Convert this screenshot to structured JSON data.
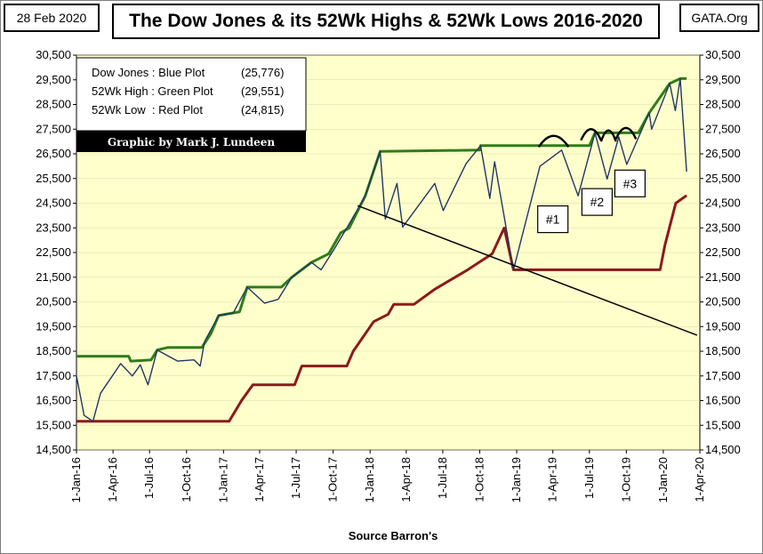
{
  "header": {
    "date": "28 Feb 2020",
    "source": "GATA.Org"
  },
  "chart_data": {
    "type": "line",
    "title": "The Dow Jones & its 52Wk Highs & 52Wk Lows 2016-2020",
    "xlabel": "Source Barron's",
    "ylabel": "",
    "ylim": [
      14500,
      30500
    ],
    "x_range": [
      "2016-01-01",
      "2020-04-01"
    ],
    "y_ticks": [
      "14,500",
      "15,500",
      "16,500",
      "17,500",
      "18,500",
      "19,500",
      "20,500",
      "21,500",
      "22,500",
      "23,500",
      "24,500",
      "25,500",
      "26,500",
      "27,500",
      "28,500",
      "29,500",
      "30,500"
    ],
    "x_ticks": [
      "1-Jan-16",
      "1-Apr-16",
      "1-Jul-16",
      "1-Oct-16",
      "1-Jan-17",
      "1-Apr-17",
      "1-Jul-17",
      "1-Oct-17",
      "1-Jan-18",
      "1-Apr-18",
      "1-Jul-18",
      "1-Oct-18",
      "1-Jan-19",
      "1-Apr-19",
      "1-Jul-19",
      "1-Oct-19",
      "1-Jan-20",
      "1-Apr-20"
    ],
    "legend": {
      "lines": [
        {
          "label": "Dow Jones : Blue Plot",
          "value": "(25,776)"
        },
        {
          "label": "52Wk High : Green Plot",
          "value": "(29,551)"
        },
        {
          "label": "52Wk Low  : Red Plot",
          "value": "(24,815)"
        }
      ],
      "credit": "Graphic by Mark J. Lundeen"
    },
    "series": [
      {
        "name": "Dow Jones",
        "color": "#1f3864",
        "points": [
          [
            "2016-01-01",
            17500
          ],
          [
            "2016-01-20",
            15900
          ],
          [
            "2016-02-11",
            15660
          ],
          [
            "2016-03-01",
            16800
          ],
          [
            "2016-04-20",
            18000
          ],
          [
            "2016-05-19",
            17500
          ],
          [
            "2016-06-08",
            17950
          ],
          [
            "2016-06-27",
            17140
          ],
          [
            "2016-07-20",
            18550
          ],
          [
            "2016-09-09",
            18100
          ],
          [
            "2016-10-20",
            18150
          ],
          [
            "2016-11-04",
            17900
          ],
          [
            "2016-11-15",
            18900
          ],
          [
            "2016-12-20",
            19950
          ],
          [
            "2017-01-25",
            20050
          ],
          [
            "2017-03-01",
            21100
          ],
          [
            "2017-04-13",
            20450
          ],
          [
            "2017-05-17",
            20600
          ],
          [
            "2017-06-20",
            21500
          ],
          [
            "2017-08-08",
            22100
          ],
          [
            "2017-09-01",
            21800
          ],
          [
            "2017-10-02",
            22600
          ],
          [
            "2017-11-06",
            23550
          ],
          [
            "2017-12-20",
            24800
          ],
          [
            "2018-01-26",
            26600
          ],
          [
            "2018-02-08",
            23860
          ],
          [
            "2018-03-09",
            25300
          ],
          [
            "2018-03-23",
            23530
          ],
          [
            "2018-06-11",
            25300
          ],
          [
            "2018-07-02",
            24200
          ],
          [
            "2018-08-28",
            26100
          ],
          [
            "2018-10-03",
            26830
          ],
          [
            "2018-10-26",
            24700
          ],
          [
            "2018-11-07",
            26180
          ],
          [
            "2018-12-24",
            21800
          ],
          [
            "2019-02-28",
            26000
          ],
          [
            "2019-04-23",
            26650
          ],
          [
            "2019-06-03",
            24800
          ],
          [
            "2019-07-15",
            27350
          ],
          [
            "2019-08-14",
            25480
          ],
          [
            "2019-09-12",
            27180
          ],
          [
            "2019-10-02",
            26070
          ],
          [
            "2019-11-27",
            28160
          ],
          [
            "2019-12-03",
            27500
          ],
          [
            "2020-01-17",
            29350
          ],
          [
            "2020-01-31",
            28250
          ],
          [
            "2020-02-12",
            29550
          ],
          [
            "2020-02-28",
            25776
          ]
        ]
      },
      {
        "name": "52Wk High",
        "color": "#2e7d1a",
        "points": [
          [
            "2016-01-01",
            18300
          ],
          [
            "2016-05-10",
            18300
          ],
          [
            "2016-05-15",
            18100
          ],
          [
            "2016-07-05",
            18150
          ],
          [
            "2016-07-20",
            18550
          ],
          [
            "2016-08-15",
            18650
          ],
          [
            "2016-11-08",
            18650
          ],
          [
            "2016-11-30",
            19200
          ],
          [
            "2016-12-20",
            19950
          ],
          [
            "2017-02-10",
            20100
          ],
          [
            "2017-03-01",
            21100
          ],
          [
            "2017-05-25",
            21100
          ],
          [
            "2017-06-20",
            21500
          ],
          [
            "2017-08-08",
            22100
          ],
          [
            "2017-09-20",
            22450
          ],
          [
            "2017-10-20",
            23300
          ],
          [
            "2017-11-10",
            23500
          ],
          [
            "2017-12-20",
            24800
          ],
          [
            "2018-01-26",
            26600
          ],
          [
            "2018-10-01",
            26650
          ],
          [
            "2018-10-03",
            26830
          ],
          [
            "2019-07-01",
            26830
          ],
          [
            "2019-07-15",
            27350
          ],
          [
            "2019-10-31",
            27350
          ],
          [
            "2019-11-27",
            28160
          ],
          [
            "2020-01-17",
            29350
          ],
          [
            "2020-02-12",
            29550
          ],
          [
            "2020-02-28",
            29551
          ]
        ]
      },
      {
        "name": "52Wk Low",
        "color": "#8b1a1a",
        "points": [
          [
            "2016-01-01",
            15660
          ],
          [
            "2017-01-15",
            15660
          ],
          [
            "2017-02-15",
            16500
          ],
          [
            "2017-03-15",
            17140
          ],
          [
            "2017-06-27",
            17140
          ],
          [
            "2017-07-15",
            17900
          ],
          [
            "2017-11-04",
            17900
          ],
          [
            "2017-11-20",
            18500
          ],
          [
            "2018-01-10",
            19700
          ],
          [
            "2018-02-15",
            20000
          ],
          [
            "2018-03-01",
            20400
          ],
          [
            "2018-04-20",
            20400
          ],
          [
            "2018-06-10",
            21000
          ],
          [
            "2018-09-01",
            21800
          ],
          [
            "2018-11-01",
            22450
          ],
          [
            "2018-12-01",
            23500
          ],
          [
            "2018-12-24",
            21800
          ],
          [
            "2019-12-24",
            21800
          ],
          [
            "2020-01-05",
            22800
          ],
          [
            "2020-02-01",
            24500
          ],
          [
            "2020-02-28",
            24815
          ]
        ]
      }
    ],
    "trendline": {
      "color": "#000000",
      "points": [
        [
          "2017-12-01",
          24400
        ],
        [
          "2020-03-25",
          19150
        ]
      ]
    },
    "annotations": [
      {
        "label": "#1",
        "box_date": "2019-04-01",
        "box_value": 23850
      },
      {
        "label": "#2",
        "box_date": "2019-07-20",
        "box_value": 24550
      },
      {
        "label": "#3",
        "box_date": "2019-10-10",
        "box_value": 25300
      }
    ],
    "arcs": [
      {
        "start": "2019-02-25",
        "end": "2019-05-10",
        "peak": 27230
      },
      {
        "start": "2019-06-10",
        "end": "2019-07-30",
        "peak": 27500
      },
      {
        "start": "2019-07-30",
        "end": "2019-09-05",
        "peak": 27450
      },
      {
        "start": "2019-09-05",
        "end": "2019-10-25",
        "peak": 27550
      }
    ]
  }
}
